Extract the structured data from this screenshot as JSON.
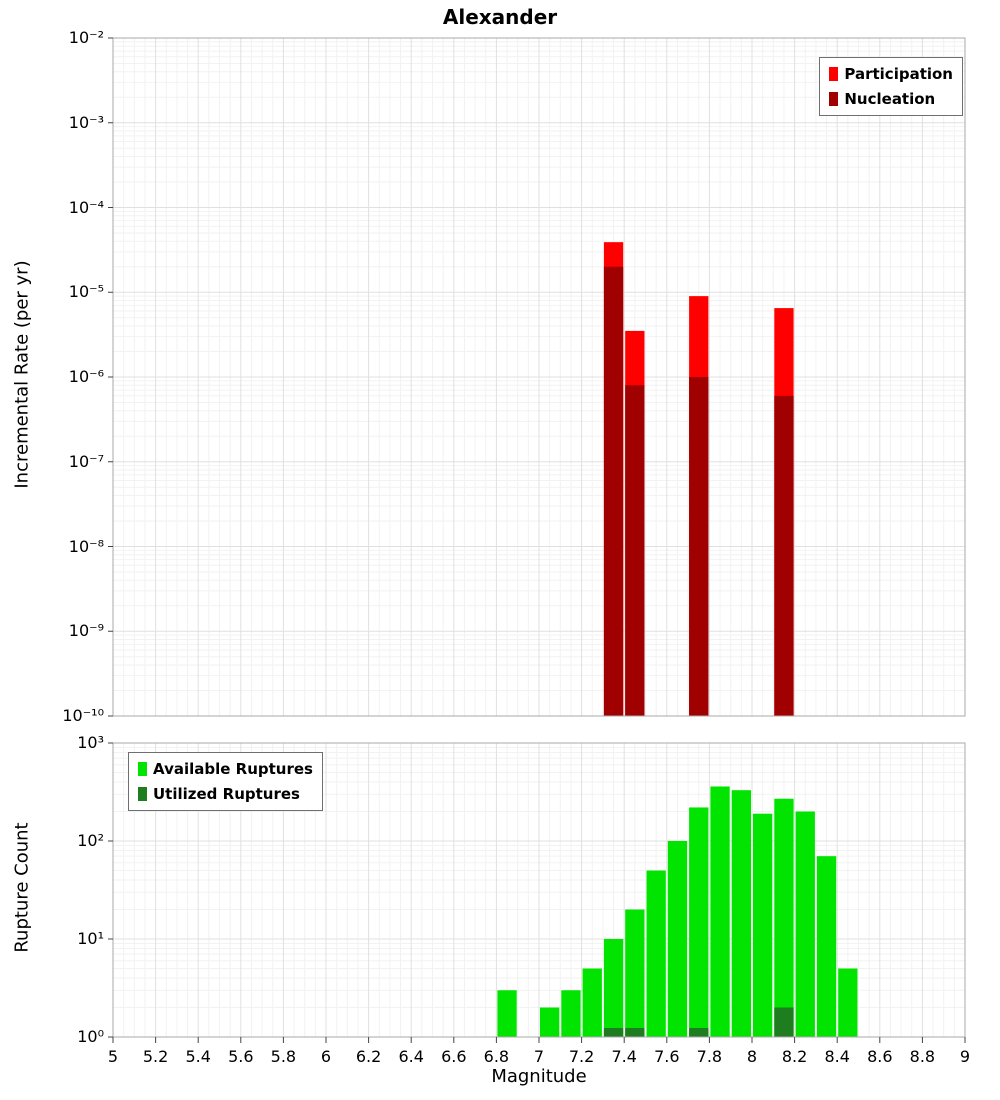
{
  "title": "Alexander",
  "xlabel": "Magnitude",
  "x_axis": {
    "min": 5,
    "max": 9,
    "major_tick_step": 0.2,
    "minor_tick_step": 0.05,
    "tick_labels": [
      "5",
      "5.2",
      "5.4",
      "5.6",
      "5.8",
      "6",
      "6.2",
      "6.4",
      "6.6",
      "6.8",
      "7",
      "7.2",
      "7.4",
      "7.6",
      "7.8",
      "8",
      "8.2",
      "8.4",
      "8.6",
      "8.8",
      "9"
    ]
  },
  "chart_data": [
    {
      "id": "incremental-rate",
      "type": "bar",
      "y_scale": "log",
      "ylabel": "Incremental Rate (per yr)",
      "ylim": [
        1e-10,
        0.01
      ],
      "y_tick_labels": [
        "10⁻²",
        "10⁻³",
        "10⁻⁴",
        "10⁻⁵",
        "10⁻⁶",
        "10⁻⁷",
        "10⁻⁸",
        "10⁻⁹",
        "10⁻¹⁰"
      ],
      "bin_width": 0.1,
      "grid": true,
      "legend_position": "top-right",
      "series": [
        {
          "name": "Participation",
          "color": "#ff0000",
          "bins": [
            {
              "mag": 7.35,
              "value": 3.9e-05
            },
            {
              "mag": 7.45,
              "value": 3.5e-06
            },
            {
              "mag": 7.75,
              "value": 9e-06
            },
            {
              "mag": 8.15,
              "value": 6.5e-06
            }
          ]
        },
        {
          "name": "Nucleation",
          "color": "#a00000",
          "bins": [
            {
              "mag": 7.35,
              "value": 2e-05
            },
            {
              "mag": 7.45,
              "value": 8e-07
            },
            {
              "mag": 7.75,
              "value": 1e-06
            },
            {
              "mag": 8.15,
              "value": 6e-07
            }
          ]
        }
      ]
    },
    {
      "id": "rupture-count",
      "type": "bar",
      "y_scale": "log",
      "ylabel": "Rupture Count",
      "ylim": [
        1,
        1000
      ],
      "y_tick_labels": [
        "10³",
        "10²",
        "10¹",
        "10⁰"
      ],
      "bin_width": 0.1,
      "grid": true,
      "legend_position": "top-left",
      "series": [
        {
          "name": "Available Ruptures",
          "color": "#00e400",
          "bins": [
            {
              "mag": 6.85,
              "value": 3
            },
            {
              "mag": 7.05,
              "value": 2
            },
            {
              "mag": 7.15,
              "value": 3
            },
            {
              "mag": 7.25,
              "value": 5
            },
            {
              "mag": 7.35,
              "value": 10
            },
            {
              "mag": 7.45,
              "value": 20
            },
            {
              "mag": 7.55,
              "value": 50
            },
            {
              "mag": 7.65,
              "value": 100
            },
            {
              "mag": 7.75,
              "value": 220
            },
            {
              "mag": 7.85,
              "value": 360
            },
            {
              "mag": 7.95,
              "value": 330
            },
            {
              "mag": 8.05,
              "value": 190
            },
            {
              "mag": 8.15,
              "value": 270
            },
            {
              "mag": 8.25,
              "value": 200
            },
            {
              "mag": 8.35,
              "value": 70
            },
            {
              "mag": 8.45,
              "value": 5
            }
          ]
        },
        {
          "name": "Utilized Ruptures",
          "color": "#1e7d1e",
          "bins": [
            {
              "mag": 7.35,
              "value": 1
            },
            {
              "mag": 7.45,
              "value": 1
            },
            {
              "mag": 7.75,
              "value": 1
            },
            {
              "mag": 8.15,
              "value": 2
            }
          ]
        }
      ]
    }
  ]
}
